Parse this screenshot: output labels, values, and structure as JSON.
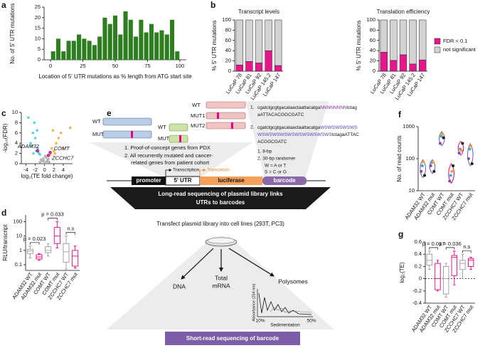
{
  "chart_data": [
    {
      "type": "histogram",
      "label": "a",
      "bins": [
        0,
        4,
        8,
        12,
        16,
        20,
        24,
        28,
        32,
        36,
        40,
        44,
        48,
        52,
        56,
        60,
        64,
        68,
        72,
        76,
        80,
        84,
        88,
        92,
        96,
        100
      ],
      "values": [
        4,
        10,
        4,
        9,
        9,
        12,
        10,
        9,
        7,
        11,
        20,
        17,
        21,
        12,
        23,
        19,
        11,
        19,
        13,
        17,
        13,
        14,
        12,
        19,
        4
      ],
      "color": "#2e7d1f",
      "xlim": [
        -5,
        105
      ],
      "xticks": [
        0,
        25,
        50,
        75,
        100
      ],
      "ylim": [
        0,
        25
      ],
      "yticks": [
        0,
        5,
        10,
        15,
        20,
        25
      ],
      "xlabel": "Location of 5' UTR mutations as % length from ATG start site",
      "ylabel": "No. of 5' UTR mutations"
    },
    {
      "type": "stacked_bar",
      "label": "b",
      "title": "Transcript levels",
      "categories": [
        "LuCaP 78",
        "LuCaP 81",
        "LuCaP 92",
        "LuCaP 145.2",
        "LuCaP 147"
      ],
      "series": [
        {
          "color": "#e8168a",
          "values": [
            12,
            19,
            16,
            40,
            11
          ]
        },
        {
          "color": "#d3d3d3",
          "values": [
            88,
            81,
            84,
            60,
            89
          ]
        }
      ],
      "ylim": [
        0,
        100
      ],
      "yticks": [
        0,
        20,
        40,
        60,
        80,
        100
      ],
      "ylabel": "% 5' UTR mutations"
    },
    {
      "type": "stacked_bar",
      "title": "Translation efficiency",
      "categories": [
        "LuCaP 78",
        "LuCaP 81",
        "LuCaP 92",
        "LuCaP 145.2",
        "LuCaP 147"
      ],
      "series": [
        {
          "name": "FDR < 0.1",
          "color": "#e8168a",
          "values": [
            37,
            21,
            32,
            14,
            22
          ]
        },
        {
          "name": "not significant",
          "color": "#d3d3d3",
          "values": [
            63,
            79,
            68,
            86,
            78
          ]
        }
      ],
      "ylim": [
        0,
        100
      ],
      "yticks": [
        0,
        20,
        40,
        60,
        80,
        100
      ],
      "ylabel": "% 5' UTR mutations"
    },
    {
      "type": "scatter",
      "label": "c",
      "xlim": [
        -5,
        6
      ],
      "xticks": [
        -4,
        -2,
        0,
        2,
        4
      ],
      "ylim": [
        0,
        10
      ],
      "yticks": [
        0,
        2,
        4,
        6,
        8,
        10
      ],
      "xlabel": "log₂(TE fold change)",
      "ylabel": "-log₁₀(FDR)",
      "series": [
        {
          "color": "#aaaaaa",
          "x": [
            -1,
            -0.5,
            0,
            0.5,
            1,
            -0.3,
            0.3,
            -0.8,
            0.8,
            0.1,
            -0.2,
            0.6
          ],
          "y": [
            0.3,
            0.5,
            0.2,
            0.4,
            0.3,
            1,
            1.2,
            0.8,
            0.9,
            1.5,
            0.6,
            0.7
          ]
        },
        {
          "color": "#3fc8e0",
          "x": [
            -3,
            -2.5,
            -2,
            -1.5,
            -2.2,
            -1.8,
            -3.5,
            -1.2,
            -2.8,
            -1.6,
            -2.4,
            -1
          ],
          "y": [
            4,
            6,
            5,
            3,
            8,
            2.5,
            9,
            2,
            3.5,
            6.5,
            2,
            1.8
          ]
        },
        {
          "color": "#f0a830",
          "x": [
            1.5,
            2,
            2.5,
            3,
            3.5,
            1.8,
            2.2,
            4,
            5.5,
            1.2
          ],
          "y": [
            3,
            2.5,
            4,
            5,
            6,
            6.5,
            2,
            3,
            7,
            1.8
          ]
        },
        {
          "color": "#b0168a",
          "x": [
            -1.5,
            1.2,
            0.8
          ],
          "y": [
            2.5,
            2.2,
            1.6
          ],
          "labels": [
            "ADAM32",
            "COMT",
            "ZCCHC7"
          ]
        }
      ]
    },
    {
      "type": "box",
      "label": "d",
      "ylog": true,
      "ylim": [
        0.04,
        300
      ],
      "yticks": [
        0.1,
        1,
        10,
        100
      ],
      "ylabel": "RLU/transcript",
      "categories": [
        "ADAM32 WT",
        "ADAM32 mut",
        "COMT WT",
        "COMT mut",
        "ZCCHC7 WT",
        "ZCCHC7 mut"
      ],
      "colors": [
        "#999999",
        "#e6007e",
        "#999999",
        "#e6007e",
        "#999999",
        "#e6007e"
      ],
      "boxes": [
        {
          "min": 0.3,
          "q1": 0.6,
          "median": 0.9,
          "q3": 1.2,
          "max": 2
        },
        {
          "min": 0.2,
          "q1": 0.25,
          "median": 0.35,
          "q3": 0.5,
          "max": 0.6
        },
        {
          "min": 0.4,
          "q1": 0.7,
          "median": 1,
          "q3": 1.8,
          "max": 3
        },
        {
          "min": 1.5,
          "q1": 3,
          "median": 10,
          "q3": 40,
          "max": 100
        },
        {
          "min": 0.05,
          "q1": 0.15,
          "median": 0.8,
          "q3": 3,
          "max": 10
        },
        {
          "min": 0.06,
          "q1": 0.08,
          "median": 0.4,
          "q3": 1,
          "max": 2
        }
      ],
      "brackets": [
        {
          "text": "p = 0.023",
          "from": 0,
          "to": 1
        },
        {
          "text": "p = 0.033",
          "from": 2,
          "to": 3
        },
        {
          "text": "n.s",
          "from": 4,
          "to": 5
        }
      ]
    },
    {
      "type": "violin",
      "label": "f",
      "ylog": true,
      "ylim": [
        10,
        1000
      ],
      "yticks": [
        10,
        100,
        1000
      ],
      "ylabel": "No. of read counts",
      "categories": [
        "ADAM32 WT",
        "ADAM32 mut",
        "COMT WT",
        "COMT mut",
        "ZCCHC7 WT",
        "ZCCHC7 mut"
      ],
      "colors": [
        "#7a4fb5",
        "#7a4fb5",
        "#7a4fb5",
        "#e6007e",
        "#e6007e",
        "#7a4fb5"
      ],
      "point_colors": [
        "#7a4fb5",
        "#2bb5c8",
        "#f0a030",
        "#1a1a1a"
      ],
      "points": [
        [
          40,
          60,
          80,
          30
        ],
        [
          60,
          75,
          80,
          40
        ],
        [
          300,
          500,
          600,
          450
        ],
        [
          20,
          30,
          40,
          60
        ],
        [
          150,
          200,
          180,
          300
        ],
        [
          100,
          200,
          250,
          70
        ]
      ]
    },
    {
      "type": "box",
      "label": "g",
      "ylim": [
        -0.4,
        0.6
      ],
      "yticks": [
        -0.4,
        -0.2,
        0,
        0.2,
        0.4,
        0.6
      ],
      "ylabel": "log₂(TE)",
      "hline": 0,
      "categories": [
        "ADAM32 WT",
        "ADAM32 mut",
        "COMT WT",
        "COMT mut",
        "ZCCHC7 WT",
        "ZCCHC7 mut"
      ],
      "colors": [
        "#999999",
        "#e6007e",
        "#999999",
        "#e6007e",
        "#999999",
        "#e6007e"
      ],
      "boxes": [
        {
          "min": 0.15,
          "q1": 0.22,
          "median": 0.3,
          "q3": 0.4,
          "max": 0.45
        },
        {
          "min": -0.2,
          "q1": -0.18,
          "median": 0,
          "q3": 0.25,
          "max": 0.3
        },
        {
          "min": -0.3,
          "q1": -0.25,
          "median": 0,
          "q3": 0.2,
          "max": 0.25
        },
        {
          "min": -0.1,
          "q1": 0.05,
          "median": 0.35,
          "q3": 0.38,
          "max": 0.45
        },
        {
          "min": 0,
          "q1": 0.15,
          "median": 0.25,
          "q3": 0.3,
          "max": 0.4
        },
        {
          "min": 0.15,
          "q1": 0.2,
          "median": 0.3,
          "q3": 0.33,
          "max": 0.35
        }
      ],
      "brackets": [
        {
          "text": "p = 0.017",
          "from": 0,
          "to": 1
        },
        {
          "text": "p = 0.036",
          "from": 2,
          "to": 3
        },
        {
          "text": "n.s",
          "from": 4,
          "to": 5
        }
      ]
    }
  ],
  "diagram": {
    "label": "e",
    "gene_sets": [
      [
        "WT",
        "MUT"
      ],
      [
        "WT",
        "MUT"
      ],
      [
        "WT",
        "MUT1",
        "MUT2"
      ]
    ],
    "sources": [
      "1.  Proof-of-concept genes from PDX",
      "2.  All recurrently mutated and cancer-",
      "related genes from patient cohort"
    ],
    "transcription": "Transcription",
    "translation": "Translation",
    "construct": [
      "promoter",
      "5' UTR",
      "luciferase",
      "barcode"
    ],
    "long_read": [
      "Long-read sequencing of plasmid library links",
      "UTRs to barcodes"
    ],
    "transfect": "Transfect plasmid library into cell lines (293T, PC3)",
    "fractions": [
      "DNA",
      "Total",
      "mRNA",
      "Polysomes"
    ],
    "profile": {
      "ylabel": "Absorbance (254 nm)",
      "xlabel": "Sedimentation",
      "start": "10%",
      "end": "50%"
    },
    "short_read": "Short-read sequencing of barcode",
    "sequences": [
      {
        "number": "1.",
        "lines": [
          [
            {
              "text": "cgatctgcgtgacataactaattacatga",
              "color": "#111111"
            },
            {
              "text": "NNNNNNNN",
              "color": "#7a2fa0"
            },
            {
              "text": "tctag",
              "color": "#111111"
            }
          ],
          [
            {
              "text": "aATTACACGGCGATC",
              "color": "#111111"
            }
          ]
        ]
      },
      {
        "number": "2.",
        "lines": [
          [
            {
              "text": "cgatctgcgtgacataactaattacatga",
              "color": "#111111"
            },
            {
              "text": "WSWSWSWSWS",
              "color": "#5a3cc8"
            }
          ],
          [
            {
              "text": "WSWSWSWSWSWSWSWSWSWS",
              "color": "#5a3cc8"
            },
            {
              "text": "tctagaATTAC",
              "color": "#111111"
            }
          ],
          [
            {
              "text": "ACGGCGATC",
              "color": "#111111"
            }
          ]
        ]
      }
    ],
    "randomers": [
      "1.  8-bp",
      "2.  30-bp randomer"
    ],
    "key": [
      {
        "text": "W = A or T",
        "color": "#2a3fd6"
      },
      {
        "text": "S = C or G",
        "color": "#e02040"
      }
    ]
  }
}
